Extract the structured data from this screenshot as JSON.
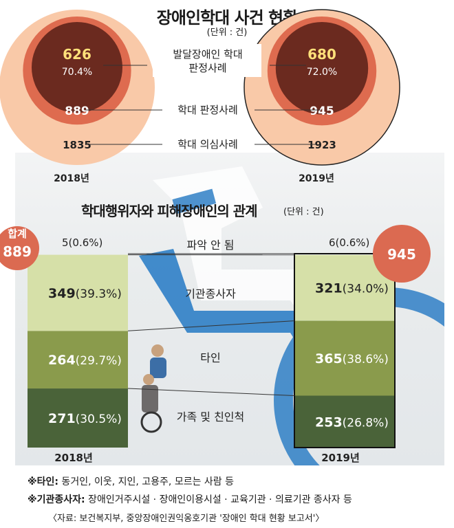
{
  "title": "장애인학대 사건 현황",
  "unit": "(단위 : 건)",
  "chart_data": [
    {
      "type": "pie",
      "subtype": "nested-circles",
      "title": "장애인학대 사건 현황",
      "unit": "(단위 : 건)",
      "labels": {
        "suspected": "학대 의심사례",
        "confirmed": "학대 판정사례",
        "developmental_1": "발달장애인 학대",
        "developmental_2": "판정사례"
      },
      "years": [
        {
          "year_label": "2018년",
          "suspected": 1835,
          "confirmed": 889,
          "developmental": 626,
          "developmental_pct": "70.4%"
        },
        {
          "year_label": "2019년",
          "suspected": 1923,
          "confirmed": 945,
          "developmental": 680,
          "developmental_pct": "72.0%"
        }
      ]
    },
    {
      "type": "bar",
      "subtype": "stacked-100",
      "title": "학대행위자와 피해장애인의 관계",
      "unit": "(단위 : 건)",
      "categories": [
        "2018년",
        "2019년"
      ],
      "totals_label": "합계",
      "totals": [
        889,
        945
      ],
      "series": [
        {
          "name": "가족 및 친인척",
          "values": [
            271,
            253
          ],
          "pct": [
            "(30.5%)",
            "(26.8%)"
          ]
        },
        {
          "name": "타인",
          "values": [
            264,
            365
          ],
          "pct": [
            "(29.7%)",
            "(38.6%)"
          ]
        },
        {
          "name": "기관종사자",
          "values": [
            349,
            321
          ],
          "pct": [
            "(39.3%)",
            "(34.0%)"
          ]
        },
        {
          "name": "파악 안 됨",
          "values": [
            5,
            6
          ],
          "pct": [
            "(0.6%)",
            "(0.6%)"
          ]
        }
      ],
      "colors": [
        "#4a6339",
        "#8a9b4c",
        "#d6e0a8",
        "#ffffff"
      ]
    }
  ],
  "footnotes": [
    {
      "mark": "※타인:",
      "text": " 동거인, 이웃, 지인, 고용주, 모르는 사람 등"
    },
    {
      "mark": "※기관종사자:",
      "text": " 장애인거주시설 · 장애인이용시설 · 교육기관 · 의료기관 종사자 등"
    }
  ],
  "source": "〈자료: 보건복지부, 중앙장애인권익옹호기관 '장애인 학대 현황 보고서'〉"
}
